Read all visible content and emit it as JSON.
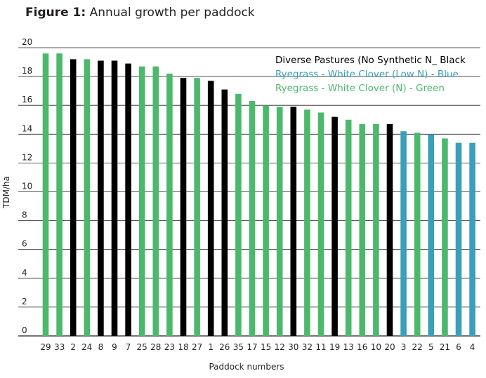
{
  "figure": {
    "label": "Figure 1:",
    "title": "Annual growth per paddock"
  },
  "chart_data": {
    "type": "bar",
    "title": "Annual growth per paddock",
    "xlabel": "Paddock numbers",
    "ylabel": "TDM/ha",
    "ylim": [
      0,
      20
    ],
    "yticks": [
      0,
      2,
      4,
      6,
      8,
      10,
      12,
      14,
      16,
      18,
      20
    ],
    "grid": "horizontal",
    "legend_position": "top-right",
    "legend": [
      {
        "text": "Diverse Pastures (No Synthetic N_ Black",
        "color": "#000000"
      },
      {
        "text": "Ryegrass - White Clover (Low N) - Blue",
        "color": "#3a9fb8"
      },
      {
        "text": "Ryegrass - White Clover (N) - Green",
        "color": "#4cb86c"
      }
    ],
    "colors": {
      "green": "#4cb86c",
      "black": "#000000",
      "blue": "#3a9fb8"
    },
    "categories": [
      "29",
      "33",
      "2",
      "24",
      "8",
      "9",
      "7",
      "25",
      "28",
      "23",
      "18",
      "27",
      "1",
      "26",
      "35",
      "17",
      "15",
      "12",
      "30",
      "32",
      "11",
      "19",
      "13",
      "16",
      "10",
      "20",
      "3",
      "22",
      "5",
      "21",
      "6",
      "4"
    ],
    "values": [
      19.6,
      19.6,
      19.2,
      19.2,
      19.1,
      19.1,
      18.9,
      18.7,
      18.7,
      18.2,
      17.9,
      17.9,
      17.7,
      17.1,
      16.8,
      16.3,
      16.0,
      15.9,
      15.9,
      15.7,
      15.5,
      15.2,
      15.0,
      14.7,
      14.7,
      14.7,
      14.2,
      14.1,
      14.0,
      13.7,
      13.4,
      13.4
    ],
    "groups": [
      "green",
      "green",
      "black",
      "green",
      "black",
      "black",
      "black",
      "green",
      "green",
      "green",
      "black",
      "green",
      "black",
      "black",
      "green",
      "green",
      "green",
      "green",
      "black",
      "green",
      "green",
      "black",
      "green",
      "green",
      "green",
      "black",
      "blue",
      "green",
      "blue",
      "green",
      "blue",
      "blue"
    ]
  }
}
